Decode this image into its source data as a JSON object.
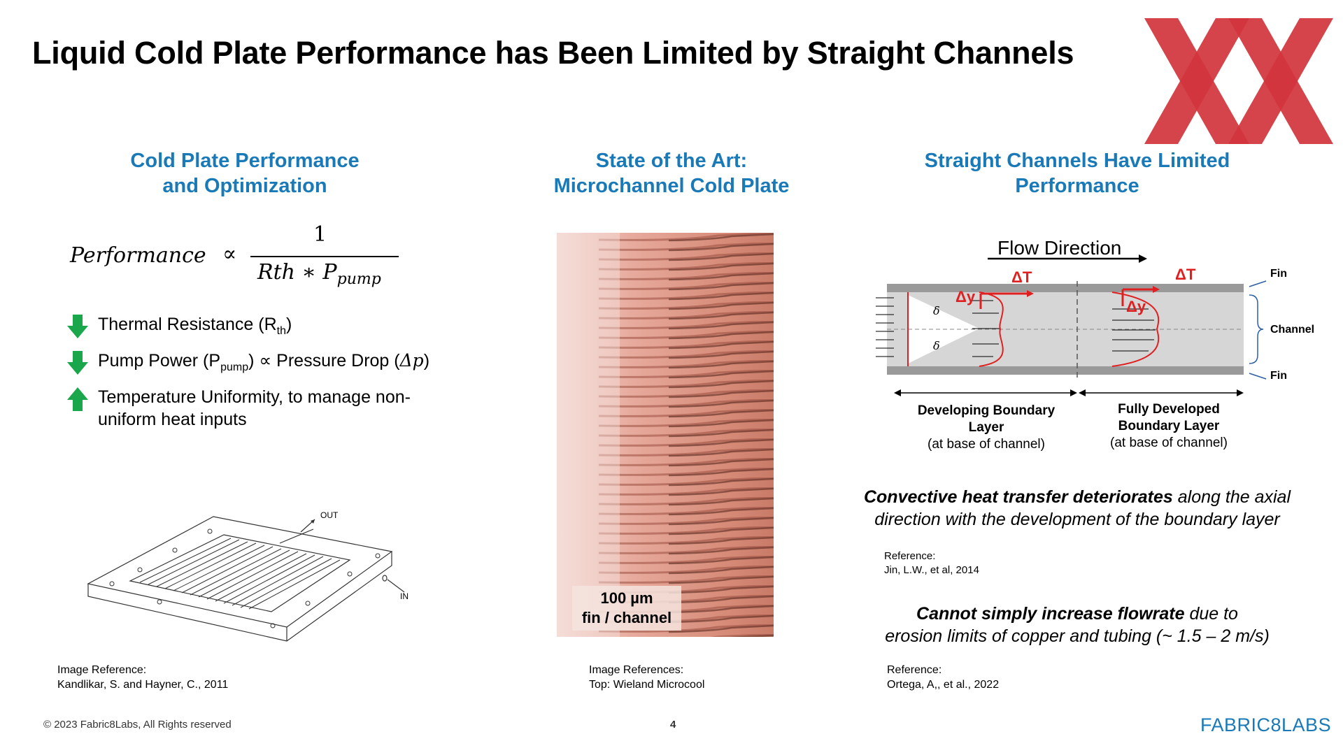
{
  "slide": {
    "title": "Liquid Cold Plate Performance has Been Limited by Straight Channels",
    "page_number": "4",
    "copyright": "© 2023 Fabric8Labs, All Rights reserved",
    "brand": "FABRIC8LABS",
    "colors": {
      "heading_blue": "#1a7ab8",
      "logo_red": "#d1343c",
      "arrow_green": "#1aa64a",
      "diagram_red": "#e02020"
    }
  },
  "col1": {
    "heading_line1": "Cold Plate Performance",
    "heading_line2": "and Optimization",
    "formula": {
      "lhs": "Performance",
      "prop": "∝",
      "numerator": "1",
      "denominator": "Rth ∗ P",
      "denominator_sub": "pump"
    },
    "bullets": [
      {
        "icon": "arrow-down-icon",
        "pre": "Thermal Resistance (R",
        "sub": "th",
        "post": ")"
      },
      {
        "icon": "arrow-down-icon",
        "pre": "Pump Power (P",
        "sub": "pump",
        "post": ") ∝ Pressure Drop (",
        "italic": "Δp",
        "tail": ")"
      },
      {
        "icon": "arrow-up-icon",
        "text_line1": "Temperature Uniformity, to manage non-",
        "text_line2": "uniform heat inputs"
      }
    ],
    "diagram_labels": {
      "out": "OUT",
      "in": "IN"
    },
    "ref_line1": "Image Reference:",
    "ref_line2": "Kandlikar, S. and Hayner, C., 2011"
  },
  "col2": {
    "heading_line1": "State of the Art:",
    "heading_line2": "Microchannel Cold Plate",
    "photo_caption_line1": "100 µm",
    "photo_caption_line2": "fin / channel",
    "ref_line1": "Image References:",
    "ref_line2": "Top: Wieland Microcool"
  },
  "col3": {
    "heading_line1": "Straight Channels Have Limited",
    "heading_line2": "Performance",
    "diagram": {
      "flow_direction": "Flow Direction",
      "delta_t": "ΔT",
      "delta_y": "Δy",
      "delta_sym": "δ",
      "fin": "Fin",
      "channel": "Channel",
      "developing_line1": "Developing Boundary",
      "developing_line2": "Layer",
      "developing_line3": "(at base of channel)",
      "developed_line1": "Fully Developed",
      "developed_line2": "Boundary Layer",
      "developed_line3": "(at base of channel)"
    },
    "statement1_bold": "Convective heat transfer deteriorates",
    "statement1_rest": " along the axial",
    "statement1_line2": "direction with the development of the boundary layer",
    "ref1_line1": "Reference:",
    "ref1_line2": "Jin, L.W., et al, 2014",
    "statement2_bold": "Cannot simply increase flowrate",
    "statement2_rest": " due to",
    "statement2_line2": "erosion limits of copper and tubing (~ 1.5 – 2 m/s)",
    "ref2_line1": "Reference:",
    "ref2_line2": "Ortega, A,, et al., 2022"
  }
}
